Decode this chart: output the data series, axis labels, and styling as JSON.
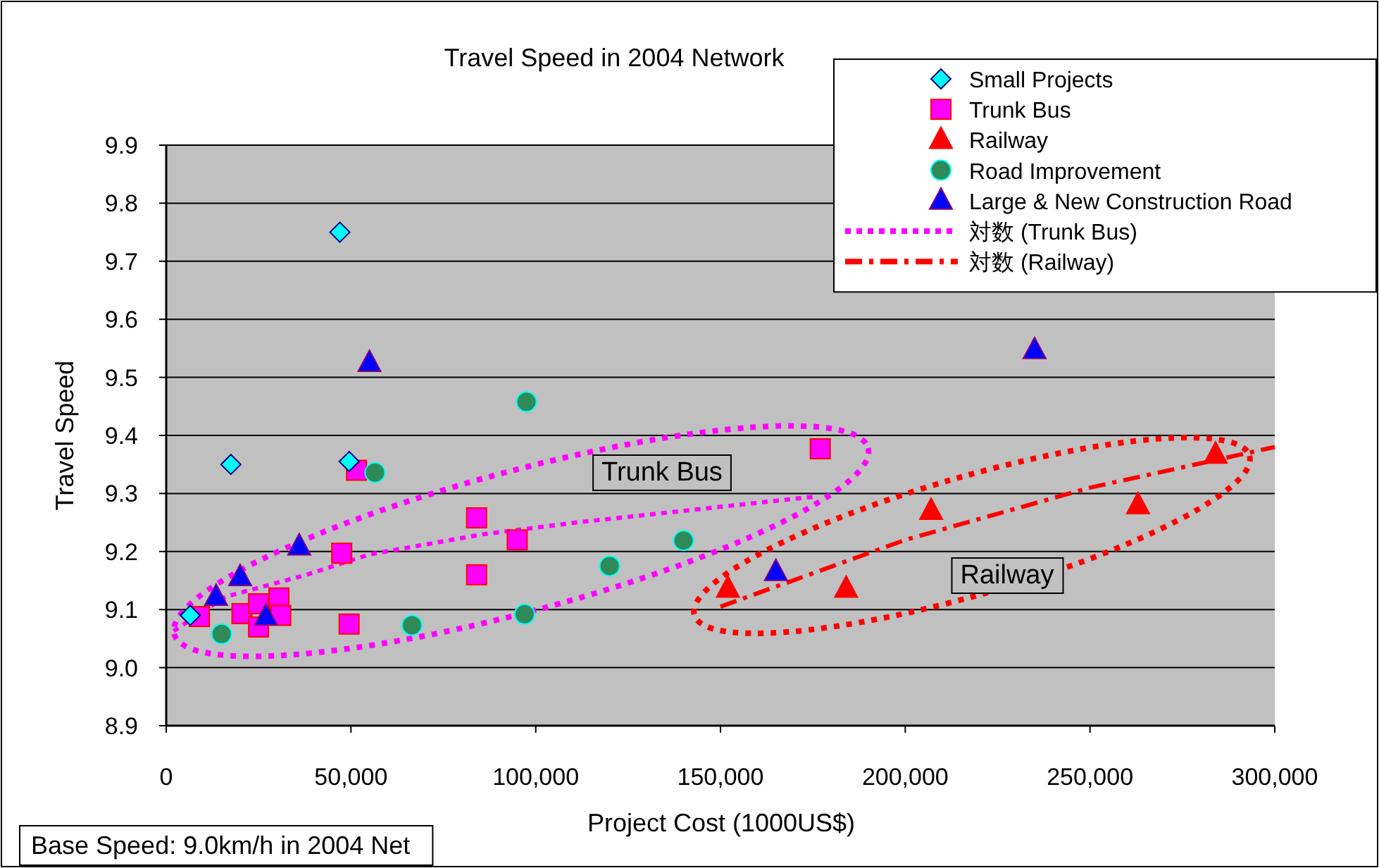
{
  "chart_data": {
    "type": "scatter",
    "title": "Travel Speed in 2004 Network",
    "xlabel": "Project Cost (1000US$)",
    "ylabel": "Travel Speed",
    "xlim": [
      0,
      300000
    ],
    "ylim": [
      8.9,
      9.9
    ],
    "xticks": [
      0,
      {
        "value": 50000,
        "label": "50,000"
      },
      {
        "value": 100000,
        "label": "100,000"
      },
      {
        "value": 150000,
        "label": "150,000"
      },
      {
        "value": 200000,
        "label": "200,000"
      },
      {
        "value": 250000,
        "label": "250,000"
      },
      {
        "value": 300000,
        "label": "300,000"
      }
    ],
    "yticks": [
      {
        "value": 8.9,
        "label": "8.9"
      },
      {
        "value": 9.0,
        "label": "9.0"
      },
      {
        "value": 9.1,
        "label": "9.1"
      },
      {
        "value": 9.2,
        "label": "9.2"
      },
      {
        "value": 9.3,
        "label": "9.3"
      },
      {
        "value": 9.4,
        "label": "9.4"
      },
      {
        "value": 9.5,
        "label": "9.5"
      },
      {
        "value": 9.6,
        "label": "9.6"
      },
      {
        "value": 9.7,
        "label": "9.7"
      },
      {
        "value": 9.8,
        "label": "9.8"
      },
      {
        "value": 9.9,
        "label": "9.9"
      }
    ],
    "grid": "y",
    "legend": "top right",
    "series": [
      {
        "name": "Small Projects",
        "marker": "diamond",
        "color": "#00ffff",
        "x": [
          6500,
          17500,
          47000,
          49500
        ],
        "values": [
          9.09,
          9.35,
          9.75,
          9.355
        ]
      },
      {
        "name": "Trunk Bus",
        "marker": "square",
        "color": "#ff00ff",
        "x": [
          9000,
          20500,
          25000,
          30500,
          31000,
          25000,
          47500,
          51500,
          49500,
          84000,
          84000,
          95000,
          177000
        ],
        "values": [
          9.088,
          9.093,
          9.11,
          9.12,
          9.09,
          9.07,
          9.197,
          9.34,
          9.075,
          9.258,
          9.16,
          9.22,
          9.377
        ]
      },
      {
        "name": "Railway",
        "marker": "triangle",
        "color": "#ff0000",
        "x": [
          152000,
          184000,
          207000,
          263000,
          284000
        ],
        "values": [
          9.136,
          9.136,
          9.27,
          9.28,
          9.367
        ]
      },
      {
        "name": "Road Improvement",
        "marker": "circle",
        "color": "#2e8b57",
        "x": [
          15000,
          56500,
          66500,
          97000,
          97500,
          120000,
          140000
        ],
        "values": [
          9.058,
          9.336,
          9.073,
          9.092,
          9.458,
          9.175,
          9.219
        ]
      },
      {
        "name": "Large & New Construction Road",
        "marker": "triangle",
        "color": "#0000ff",
        "x": [
          13500,
          20000,
          36000,
          27000,
          55000,
          165000,
          235000
        ],
        "values": [
          9.122,
          9.156,
          9.209,
          9.088,
          9.525,
          9.165,
          9.547
        ]
      },
      {
        "name": "対数 (Trunk Bus)",
        "type": "line",
        "line_style": "dotted",
        "color": "#ff00ff",
        "x": [
          2000,
          16000,
          38000,
          55000,
          86000,
          111000,
          176000
        ],
        "values": [
          9.063,
          9.122,
          9.16,
          9.195,
          9.23,
          9.25,
          9.295
        ]
      },
      {
        "name": "対数 (Railway)",
        "type": "line",
        "line_style": "dashed",
        "color": "#ff0000",
        "x": [
          150000,
          200000,
          250000,
          300000
        ],
        "values": [
          9.105,
          9.22,
          9.31,
          9.38
        ]
      }
    ],
    "annotations": [
      "Trunk Bus",
      "Railway",
      "Base Speed: 9.0km/h in 2004 Net"
    ]
  }
}
